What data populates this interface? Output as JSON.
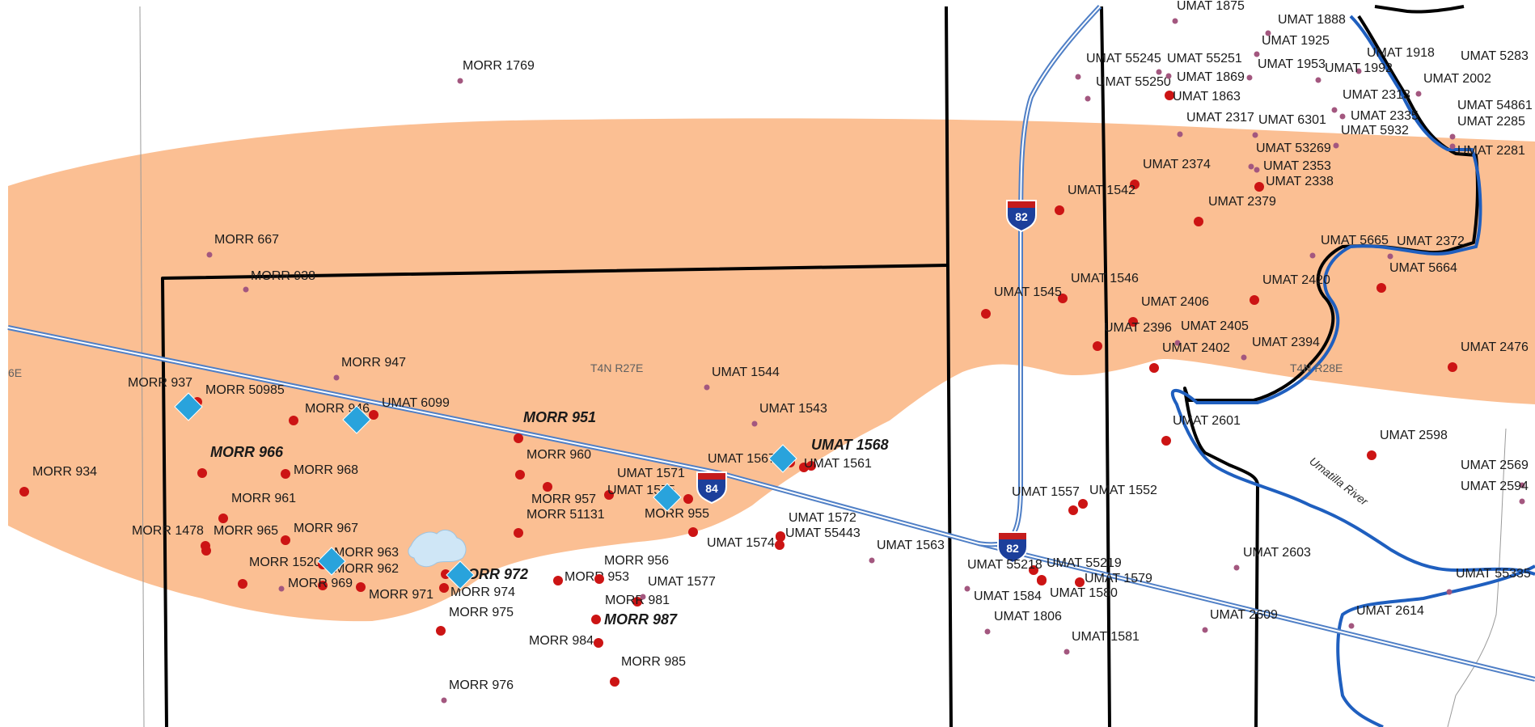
{
  "map": {
    "colors": {
      "background": "#ffffff",
      "zone_fill": "#fbbf93",
      "boundary": "#000000",
      "thin_line": "#9a9a9a",
      "river": "#1f5fbf",
      "highway": "#4f7fc6",
      "well_red": "#cc1414",
      "well_purple": "#a3577f",
      "site_diamond": "#29a3dc",
      "label": "#1a1a1a",
      "township_label": "#606060",
      "pond": "#cfe6f6"
    },
    "township_labels": [
      "T4N R27E",
      "T4N R28E",
      "6E"
    ],
    "river_label": "Umatilla River",
    "highway_shields": [
      {
        "id": "i82-north",
        "number": "82"
      },
      {
        "id": "i84",
        "number": "84"
      },
      {
        "id": "i82-south",
        "number": "82"
      }
    ],
    "well_labels": [
      {
        "id": "w1",
        "text": "MORR 1769",
        "marker": "purple",
        "bold": false
      },
      {
        "id": "w2",
        "text": "MORR 667",
        "marker": "purple",
        "bold": false
      },
      {
        "id": "w3",
        "text": "MORR 938",
        "marker": "purple",
        "bold": false
      },
      {
        "id": "w4",
        "text": "MORR 947",
        "marker": "purple",
        "bold": false
      },
      {
        "id": "w5",
        "text": "MORR 937",
        "marker": "none",
        "bold": false
      },
      {
        "id": "w6",
        "text": "MORR 50985",
        "marker": "red",
        "bold": false
      },
      {
        "id": "w7",
        "text": "MORR 946",
        "marker": "red",
        "bold": false
      },
      {
        "id": "w8",
        "text": "UMAT 6099",
        "marker": "red",
        "bold": false
      },
      {
        "id": "w9",
        "text": "MORR 951",
        "marker": "red",
        "bold": true
      },
      {
        "id": "w10",
        "text": "MORR 966",
        "marker": "red",
        "bold": true
      },
      {
        "id": "w11",
        "text": "MORR 968",
        "marker": "red",
        "bold": false
      },
      {
        "id": "w12",
        "text": "MORR 934",
        "marker": "red",
        "bold": false
      },
      {
        "id": "w13",
        "text": "MORR 960",
        "marker": "red",
        "bold": false
      },
      {
        "id": "w14",
        "text": "MORR 961",
        "marker": "red",
        "bold": false
      },
      {
        "id": "w15",
        "text": "MORR 1478",
        "marker": "red",
        "bold": false
      },
      {
        "id": "w16",
        "text": "MORR 965",
        "marker": "red",
        "bold": false
      },
      {
        "id": "w17",
        "text": "MORR 967",
        "marker": "red",
        "bold": false
      },
      {
        "id": "w18",
        "text": "MORR 1520",
        "marker": "red",
        "bold": false
      },
      {
        "id": "w19",
        "text": "MORR 963",
        "marker": "red",
        "bold": false
      },
      {
        "id": "w20",
        "text": "MORR 962",
        "marker": "red",
        "bold": false
      },
      {
        "id": "w21",
        "text": "MORR 969",
        "marker": "purple",
        "bold": false
      },
      {
        "id": "w22",
        "text": "MORR 971",
        "marker": "red",
        "bold": false
      },
      {
        "id": "w23",
        "text": "MORR 972",
        "marker": "red",
        "bold": true
      },
      {
        "id": "w24",
        "text": "MORR 974",
        "marker": "red",
        "bold": false
      },
      {
        "id": "w25",
        "text": "MORR 975",
        "marker": "red",
        "bold": false
      },
      {
        "id": "w26",
        "text": "MORR 957",
        "marker": "red",
        "bold": false
      },
      {
        "id": "w27",
        "text": "MORR 51131",
        "marker": "red",
        "bold": false
      },
      {
        "id": "w28",
        "text": "MORR 953",
        "marker": "red",
        "bold": false
      },
      {
        "id": "w29",
        "text": "MORR 956",
        "marker": "red",
        "bold": false
      },
      {
        "id": "w30",
        "text": "MORR 955",
        "marker": "red",
        "bold": false
      },
      {
        "id": "w31",
        "text": "MORR 981",
        "marker": "red",
        "bold": false
      },
      {
        "id": "w32",
        "text": "MORR 987",
        "marker": "red",
        "bold": true
      },
      {
        "id": "w33",
        "text": "MORR 984",
        "marker": "red",
        "bold": false
      },
      {
        "id": "w34",
        "text": "MORR 985",
        "marker": "red",
        "bold": false
      },
      {
        "id": "w35",
        "text": "MORR 976",
        "marker": "purple",
        "bold": false
      },
      {
        "id": "w36",
        "text": "UMAT 1571",
        "marker": "red",
        "bold": false
      },
      {
        "id": "w37",
        "text": "UMAT 1575",
        "marker": "red",
        "bold": false
      },
      {
        "id": "w38",
        "text": "UMAT 1577",
        "marker": "purple",
        "bold": false
      },
      {
        "id": "w39",
        "text": "UMAT 1574",
        "marker": "red",
        "bold": false
      },
      {
        "id": "w40",
        "text": "UMAT 1544",
        "marker": "purple",
        "bold": false
      },
      {
        "id": "w41",
        "text": "UMAT 1543",
        "marker": "purple",
        "bold": false
      },
      {
        "id": "w42",
        "text": "UMAT 1567",
        "marker": "red",
        "bold": false
      },
      {
        "id": "w43",
        "text": "UMAT 1568",
        "marker": "red",
        "bold": true
      },
      {
        "id": "w44",
        "text": "UMAT 1561",
        "marker": "red",
        "bold": false
      },
      {
        "id": "w45",
        "text": "UMAT 1572",
        "marker": "red",
        "bold": false
      },
      {
        "id": "w46",
        "text": "UMAT 55443",
        "marker": "red",
        "bold": false
      },
      {
        "id": "w47",
        "text": "UMAT 1563",
        "marker": "purple",
        "bold": false
      },
      {
        "id": "w48",
        "text": "UMAT 1875",
        "marker": "purple",
        "bold": false
      },
      {
        "id": "w49",
        "text": "UMAT 1888",
        "marker": "purple",
        "bold": false
      },
      {
        "id": "w50",
        "text": "UMAT 1925",
        "marker": "purple",
        "bold": false
      },
      {
        "id": "w51",
        "text": "UMAT 1918",
        "marker": "purple",
        "bold": false
      },
      {
        "id": "w52",
        "text": "UMAT 5283",
        "marker": "purple",
        "bold": false
      },
      {
        "id": "w53",
        "text": "UMAT 55245",
        "marker": "purple",
        "bold": false
      },
      {
        "id": "w54",
        "text": "UMAT 55251",
        "marker": "purple",
        "bold": false
      },
      {
        "id": "w55",
        "text": "UMAT 1953",
        "marker": "purple",
        "bold": false
      },
      {
        "id": "w56",
        "text": "UMAT 1992",
        "marker": "purple",
        "bold": false
      },
      {
        "id": "w57",
        "text": "UMAT 2002",
        "marker": "purple",
        "bold": false
      },
      {
        "id": "w58",
        "text": "UMAT 55250",
        "marker": "purple",
        "bold": false
      },
      {
        "id": "w59",
        "text": "UMAT 1869",
        "marker": "purple",
        "bold": false
      },
      {
        "id": "w60",
        "text": "UMAT 1863",
        "marker": "red",
        "bold": false
      },
      {
        "id": "w61",
        "text": "UMAT 2313",
        "marker": "purple",
        "bold": false
      },
      {
        "id": "w62",
        "text": "UMAT 54861",
        "marker": "purple",
        "bold": false
      },
      {
        "id": "w63",
        "text": "UMAT 2317",
        "marker": "purple",
        "bold": false
      },
      {
        "id": "w64",
        "text": "UMAT 6301",
        "marker": "purple",
        "bold": false
      },
      {
        "id": "w65",
        "text": "UMAT 2335",
        "marker": "purple",
        "bold": false
      },
      {
        "id": "w66",
        "text": "UMAT 2285",
        "marker": "purple",
        "bold": false
      },
      {
        "id": "w67",
        "text": "UMAT 5932",
        "marker": "purple",
        "bold": false
      },
      {
        "id": "w68",
        "text": "UMAT 53269",
        "marker": "purple",
        "bold": false
      },
      {
        "id": "w69",
        "text": "UMAT 2281",
        "marker": "purple",
        "bold": false
      },
      {
        "id": "w70",
        "text": "UMAT 2374",
        "marker": "red",
        "bold": false
      },
      {
        "id": "w71",
        "text": "UMAT 2353",
        "marker": "purple",
        "bold": false
      },
      {
        "id": "w72",
        "text": "UMAT 2338",
        "marker": "red",
        "bold": false
      },
      {
        "id": "w73",
        "text": "UMAT 1542",
        "marker": "red",
        "bold": false
      },
      {
        "id": "w74",
        "text": "UMAT 2379",
        "marker": "red",
        "bold": false
      },
      {
        "id": "w75",
        "text": "UMAT 5665",
        "marker": "purple",
        "bold": false
      },
      {
        "id": "w76",
        "text": "UMAT 2372",
        "marker": "purple",
        "bold": false
      },
      {
        "id": "w77",
        "text": "UMAT 5664",
        "marker": "red",
        "bold": false
      },
      {
        "id": "w78",
        "text": "UMAT 1546",
        "marker": "red",
        "bold": false
      },
      {
        "id": "w79",
        "text": "UMAT 1545",
        "marker": "red",
        "bold": false
      },
      {
        "id": "w80",
        "text": "UMAT 2420",
        "marker": "red",
        "bold": false
      },
      {
        "id": "w81",
        "text": "UMAT 2406",
        "marker": "red",
        "bold": false
      },
      {
        "id": "w82",
        "text": "UMAT 2396",
        "marker": "red",
        "bold": false
      },
      {
        "id": "w83",
        "text": "UMAT 2405",
        "marker": "purple",
        "bold": false
      },
      {
        "id": "w84",
        "text": "UMAT 2402",
        "marker": "red",
        "bold": false
      },
      {
        "id": "w85",
        "text": "UMAT 2394",
        "marker": "purple",
        "bold": false
      },
      {
        "id": "w86",
        "text": "UMAT 2476",
        "marker": "red",
        "bold": false
      },
      {
        "id": "w87",
        "text": "UMAT 2601",
        "marker": "red",
        "bold": false
      },
      {
        "id": "w88",
        "text": "UMAT 2598",
        "marker": "red",
        "bold": false
      },
      {
        "id": "w89",
        "text": "UMAT 2569",
        "marker": "purple",
        "bold": false
      },
      {
        "id": "w90",
        "text": "UMAT 2594",
        "marker": "purple",
        "bold": false
      },
      {
        "id": "w91",
        "text": "UMAT 1557",
        "marker": "red",
        "bold": false
      },
      {
        "id": "w92",
        "text": "UMAT 1552",
        "marker": "red",
        "bold": false
      },
      {
        "id": "w93",
        "text": "UMAT 2603",
        "marker": "purple",
        "bold": false
      },
      {
        "id": "w94",
        "text": "UMAT 55218",
        "marker": "red",
        "bold": false
      },
      {
        "id": "w95",
        "text": "UMAT 55219",
        "marker": "red",
        "bold": false
      },
      {
        "id": "w96",
        "text": "UMAT 1579",
        "marker": "red",
        "bold": false
      },
      {
        "id": "w97",
        "text": "UMAT 1584",
        "marker": "purple",
        "bold": false
      },
      {
        "id": "w98",
        "text": "UMAT 1580",
        "marker": "red",
        "bold": false
      },
      {
        "id": "w99",
        "text": "UMAT 55335",
        "marker": "purple",
        "bold": false
      },
      {
        "id": "w100",
        "text": "UMAT 1806",
        "marker": "purple",
        "bold": false
      },
      {
        "id": "w101",
        "text": "UMAT 2609",
        "marker": "purple",
        "bold": false
      },
      {
        "id": "w102",
        "text": "UMAT 2614",
        "marker": "purple",
        "bold": false
      },
      {
        "id": "w103",
        "text": "UMAT 1581",
        "marker": "purple",
        "bold": false
      }
    ],
    "sites": [
      "site-1",
      "site-2",
      "site-3",
      "site-4",
      "site-5",
      "site-6",
      "site-7"
    ]
  }
}
